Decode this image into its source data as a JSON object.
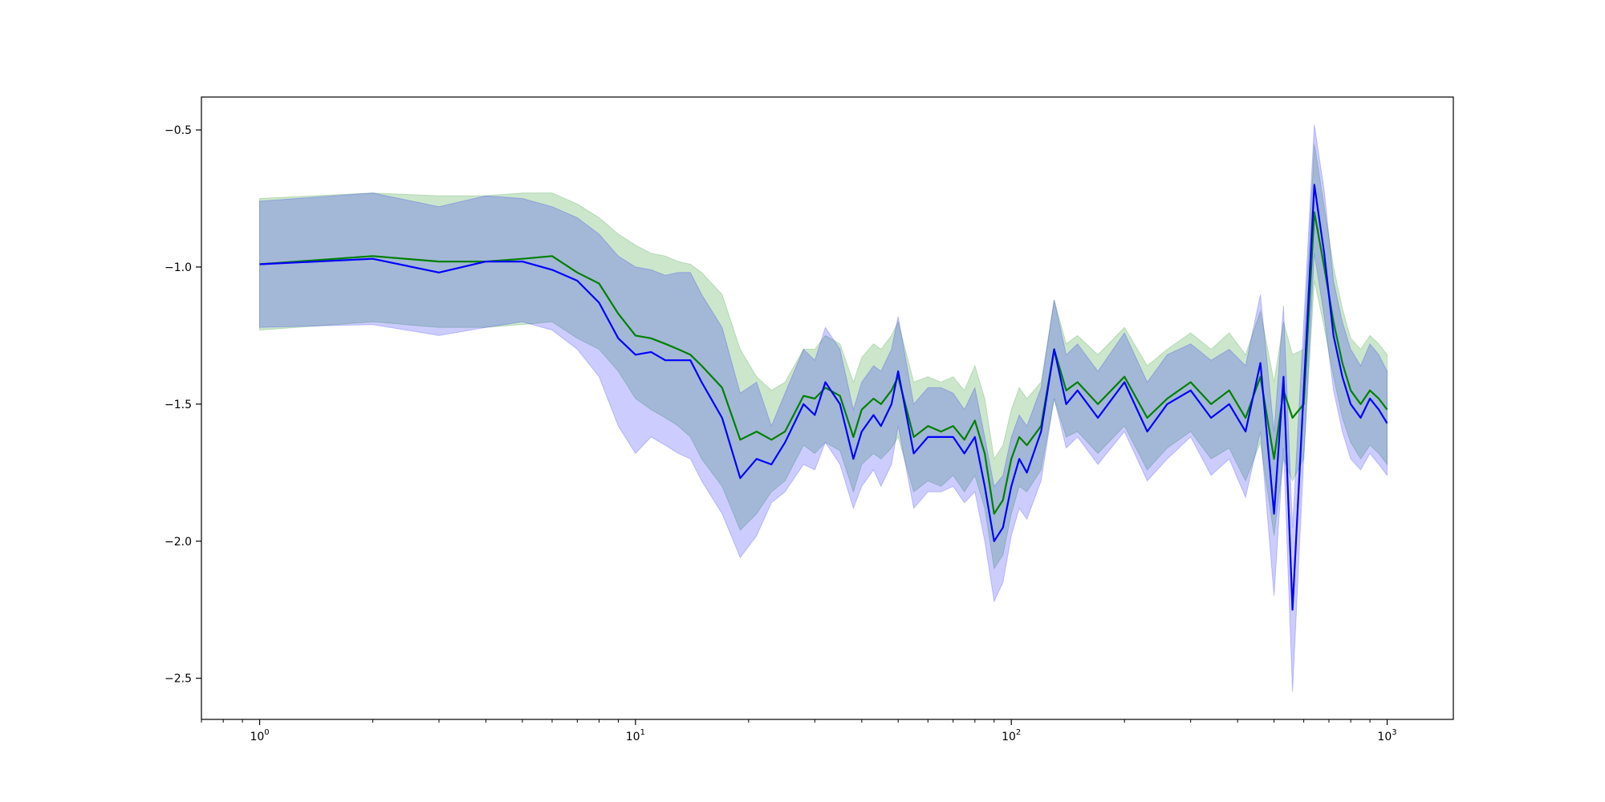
{
  "chart_data": {
    "type": "line",
    "title": "",
    "xlabel": "",
    "ylabel": "",
    "xscale": "log",
    "xlim": [
      0.7,
      1500
    ],
    "ylim": [
      -2.65,
      -0.38
    ],
    "grid": false,
    "legend": "none",
    "x_ticks": [
      {
        "value": 1,
        "base": "10",
        "exp": "0"
      },
      {
        "value": 10,
        "base": "10",
        "exp": "1"
      },
      {
        "value": 100,
        "base": "10",
        "exp": "2"
      },
      {
        "value": 1000,
        "base": "10",
        "exp": "3"
      }
    ],
    "y_ticks": [
      {
        "value": -0.5,
        "label": "−0.5"
      },
      {
        "value": -1.0,
        "label": "−1.0"
      },
      {
        "value": -1.5,
        "label": "−1.5"
      },
      {
        "value": -2.0,
        "label": "−2.0"
      },
      {
        "value": -2.5,
        "label": "−2.5"
      }
    ],
    "series": [
      {
        "color": "#008000",
        "band_color": "#008000",
        "band_opacity": 0.2,
        "x": [
          1,
          2,
          3,
          4,
          5,
          6,
          7,
          8,
          9,
          10,
          11,
          12,
          13,
          14,
          15,
          17,
          19,
          21,
          23,
          25,
          28,
          30,
          32,
          35,
          38,
          40,
          43,
          45,
          48,
          50,
          55,
          60,
          65,
          70,
          75,
          80,
          85,
          90,
          95,
          100,
          105,
          110,
          120,
          130,
          140,
          150,
          170,
          200,
          230,
          260,
          300,
          340,
          380,
          420,
          460,
          500,
          530,
          560,
          600,
          640,
          680,
          720,
          760,
          800,
          850,
          900,
          950,
          1000
        ],
        "y": [
          -0.99,
          -0.96,
          -0.98,
          -0.98,
          -0.97,
          -0.96,
          -1.02,
          -1.06,
          -1.17,
          -1.25,
          -1.26,
          -1.28,
          -1.3,
          -1.32,
          -1.36,
          -1.44,
          -1.63,
          -1.6,
          -1.63,
          -1.6,
          -1.47,
          -1.48,
          -1.44,
          -1.47,
          -1.62,
          -1.52,
          -1.48,
          -1.5,
          -1.45,
          -1.4,
          -1.62,
          -1.58,
          -1.6,
          -1.58,
          -1.63,
          -1.56,
          -1.68,
          -1.9,
          -1.85,
          -1.7,
          -1.62,
          -1.65,
          -1.58,
          -1.3,
          -1.45,
          -1.42,
          -1.5,
          -1.4,
          -1.55,
          -1.48,
          -1.42,
          -1.5,
          -1.45,
          -1.55,
          -1.4,
          -1.7,
          -1.45,
          -1.55,
          -1.5,
          -0.8,
          -1.0,
          -1.2,
          -1.35,
          -1.45,
          -1.5,
          -1.45,
          -1.48,
          -1.52
        ],
        "lower": [
          -1.23,
          -1.2,
          -1.22,
          -1.22,
          -1.21,
          -1.2,
          -1.26,
          -1.3,
          -1.38,
          -1.48,
          -1.52,
          -1.55,
          -1.58,
          -1.62,
          -1.7,
          -1.8,
          -1.96,
          -1.9,
          -1.82,
          -1.78,
          -1.65,
          -1.68,
          -1.64,
          -1.67,
          -1.82,
          -1.72,
          -1.68,
          -1.7,
          -1.66,
          -1.62,
          -1.82,
          -1.78,
          -1.8,
          -1.76,
          -1.82,
          -1.76,
          -1.88,
          -2.1,
          -2.05,
          -1.9,
          -1.8,
          -1.82,
          -1.74,
          -1.48,
          -1.62,
          -1.6,
          -1.68,
          -1.58,
          -1.74,
          -1.66,
          -1.6,
          -1.7,
          -1.66,
          -1.78,
          -1.64,
          -1.98,
          -1.7,
          -1.78,
          -1.7,
          -1.05,
          -1.22,
          -1.4,
          -1.55,
          -1.64,
          -1.7,
          -1.65,
          -1.68,
          -1.72
        ],
        "upper": [
          -0.75,
          -0.73,
          -0.74,
          -0.74,
          -0.73,
          -0.73,
          -0.77,
          -0.82,
          -0.88,
          -0.92,
          -0.95,
          -0.96,
          -0.98,
          -0.99,
          -1.02,
          -1.1,
          -1.3,
          -1.4,
          -1.45,
          -1.42,
          -1.3,
          -1.3,
          -1.25,
          -1.28,
          -1.42,
          -1.33,
          -1.28,
          -1.3,
          -1.25,
          -1.2,
          -1.42,
          -1.4,
          -1.42,
          -1.4,
          -1.45,
          -1.36,
          -1.48,
          -1.7,
          -1.65,
          -1.52,
          -1.44,
          -1.48,
          -1.42,
          -1.12,
          -1.28,
          -1.25,
          -1.32,
          -1.22,
          -1.36,
          -1.3,
          -1.24,
          -1.3,
          -1.24,
          -1.32,
          -1.16,
          -1.42,
          -1.2,
          -1.32,
          -1.3,
          -0.55,
          -0.78,
          -1.0,
          -1.15,
          -1.26,
          -1.3,
          -1.25,
          -1.28,
          -1.32
        ]
      },
      {
        "color": "#0000ff",
        "band_color": "#0000ff",
        "band_opacity": 0.2,
        "x": [
          1,
          2,
          3,
          4,
          5,
          6,
          7,
          8,
          9,
          10,
          11,
          12,
          13,
          14,
          15,
          17,
          19,
          21,
          23,
          25,
          28,
          30,
          32,
          35,
          38,
          40,
          43,
          45,
          48,
          50,
          55,
          60,
          65,
          70,
          75,
          80,
          85,
          90,
          95,
          100,
          105,
          110,
          120,
          130,
          140,
          150,
          170,
          200,
          230,
          260,
          300,
          340,
          380,
          420,
          460,
          500,
          530,
          560,
          600,
          640,
          680,
          720,
          760,
          800,
          850,
          900,
          950,
          1000
        ],
        "y": [
          -0.99,
          -0.97,
          -1.02,
          -0.98,
          -0.98,
          -1.01,
          -1.05,
          -1.13,
          -1.26,
          -1.32,
          -1.31,
          -1.34,
          -1.34,
          -1.34,
          -1.42,
          -1.55,
          -1.77,
          -1.7,
          -1.72,
          -1.64,
          -1.5,
          -1.54,
          -1.42,
          -1.5,
          -1.7,
          -1.6,
          -1.54,
          -1.58,
          -1.5,
          -1.38,
          -1.68,
          -1.62,
          -1.62,
          -1.62,
          -1.68,
          -1.62,
          -1.8,
          -2.0,
          -1.95,
          -1.8,
          -1.7,
          -1.75,
          -1.6,
          -1.3,
          -1.5,
          -1.45,
          -1.55,
          -1.42,
          -1.6,
          -1.5,
          -1.45,
          -1.55,
          -1.5,
          -1.6,
          -1.35,
          -1.9,
          -1.4,
          -2.25,
          -1.45,
          -0.7,
          -0.95,
          -1.25,
          -1.4,
          -1.5,
          -1.55,
          -1.48,
          -1.52,
          -1.57
        ],
        "lower": [
          -1.22,
          -1.21,
          -1.25,
          -1.22,
          -1.2,
          -1.23,
          -1.3,
          -1.4,
          -1.58,
          -1.68,
          -1.62,
          -1.65,
          -1.68,
          -1.7,
          -1.78,
          -1.9,
          -2.06,
          -1.98,
          -1.86,
          -1.82,
          -1.72,
          -1.74,
          -1.64,
          -1.72,
          -1.88,
          -1.8,
          -1.74,
          -1.8,
          -1.72,
          -1.58,
          -1.88,
          -1.82,
          -1.82,
          -1.8,
          -1.86,
          -1.82,
          -2.0,
          -2.22,
          -2.15,
          -1.98,
          -1.88,
          -1.92,
          -1.78,
          -1.48,
          -1.66,
          -1.62,
          -1.72,
          -1.6,
          -1.78,
          -1.7,
          -1.62,
          -1.76,
          -1.7,
          -1.84,
          -1.6,
          -2.2,
          -1.66,
          -2.55,
          -1.7,
          -0.95,
          -1.18,
          -1.45,
          -1.6,
          -1.7,
          -1.74,
          -1.68,
          -1.72,
          -1.76
        ],
        "upper": [
          -0.76,
          -0.73,
          -0.78,
          -0.74,
          -0.75,
          -0.78,
          -0.82,
          -0.88,
          -0.96,
          -1.0,
          -1.01,
          -1.03,
          -1.02,
          -1.02,
          -1.1,
          -1.22,
          -1.46,
          -1.42,
          -1.58,
          -1.46,
          -1.3,
          -1.34,
          -1.22,
          -1.3,
          -1.52,
          -1.42,
          -1.36,
          -1.38,
          -1.3,
          -1.18,
          -1.5,
          -1.44,
          -1.44,
          -1.46,
          -1.52,
          -1.44,
          -1.62,
          -1.8,
          -1.76,
          -1.62,
          -1.54,
          -1.58,
          -1.44,
          -1.12,
          -1.32,
          -1.28,
          -1.38,
          -1.24,
          -1.42,
          -1.32,
          -1.28,
          -1.34,
          -1.3,
          -1.36,
          -1.1,
          -1.6,
          -1.14,
          -1.95,
          -1.2,
          -0.48,
          -0.72,
          -1.05,
          -1.2,
          -1.3,
          -1.36,
          -1.28,
          -1.32,
          -1.38
        ]
      }
    ]
  }
}
